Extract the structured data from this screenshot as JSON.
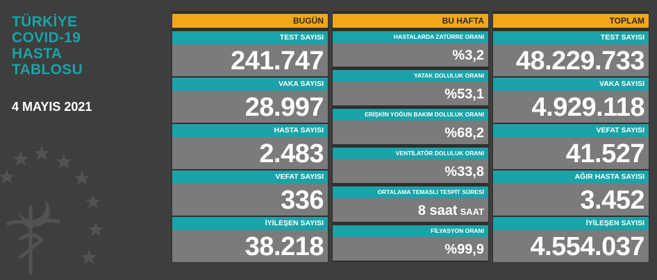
{
  "sidebar": {
    "title_lines": [
      "TÜRKİYE",
      "COVID-19",
      "HASTA",
      "TABLOSU"
    ],
    "date": "4 MAYIS 2021"
  },
  "columns": {
    "today": {
      "header": "BUGÜN",
      "cards": [
        {
          "label": "TEST SAYISI",
          "value": "241.747"
        },
        {
          "label": "VAKA SAYISI",
          "value": "28.997"
        },
        {
          "label": "HASTA SAYISI",
          "value": "2.483"
        },
        {
          "label": "VEFAT SAYISI",
          "value": "336"
        },
        {
          "label": "İYİLEŞEN SAYISI",
          "value": "38.218"
        }
      ]
    },
    "week": {
      "header": "BU HAFTA",
      "cards": [
        {
          "label": "HASTALARDA ZATÜRRE ORANI",
          "value": "%3,2"
        },
        {
          "label": "YATAK DOLULUK ORANI",
          "value": "%53,1"
        },
        {
          "label": "ERİŞKİN YOĞUN BAKIM DOLULUK ORANI",
          "value": "%68,2"
        },
        {
          "label": "VENTİLATÖR DOLULUK ORANI",
          "value": "%33,8"
        },
        {
          "label": "ORTALAMA TEMASLI TESPİT SÜRESİ",
          "value": "8 saat",
          "unit": "SAAT"
        },
        {
          "label": "FİLYASYON ORANI",
          "value": "%99,9"
        }
      ]
    },
    "total": {
      "header": "TOPLAM",
      "cards": [
        {
          "label": "TEST SAYISI",
          "value": "48.229.733"
        },
        {
          "label": "VAKA SAYISI",
          "value": "4.929.118"
        },
        {
          "label": "VEFAT SAYISI",
          "value": "41.527"
        },
        {
          "label": "AĞIR HASTA SAYISI",
          "value": "3.452"
        },
        {
          "label": "İYİLEŞEN SAYISI",
          "value": "4.554.037"
        }
      ]
    }
  },
  "colors": {
    "background": "#3e3e3e",
    "panel": "#2f2f2f",
    "accent_teal": "#1aa3a8",
    "header_orange": "#f2a71b",
    "value_gray": "#7b7b7b"
  },
  "icons": [
    "emblem-icon",
    "star-icon",
    "crescent-icon",
    "caduceus-icon"
  ]
}
